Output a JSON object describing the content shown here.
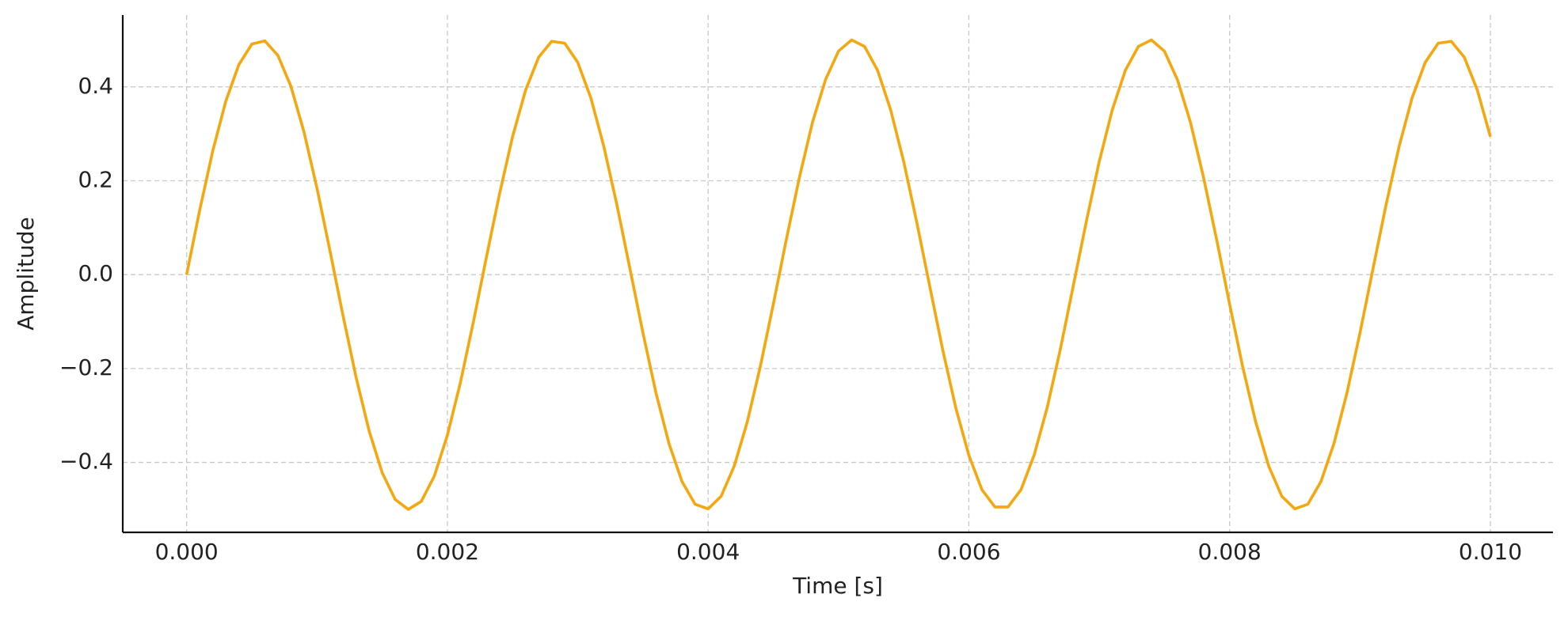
{
  "chart_data": {
    "type": "line",
    "xlabel": "Time [s]",
    "ylabel": "Amplitude",
    "x": [
      0,
      0.0001,
      0.0002,
      0.0003,
      0.0004,
      0.0005,
      0.0006,
      0.0007,
      0.0008,
      0.0009,
      0.001,
      0.0011,
      0.0012,
      0.0013,
      0.0014,
      0.0015,
      0.0016,
      0.0017,
      0.0018,
      0.0019,
      0.002,
      0.0021,
      0.0022,
      0.0023,
      0.0024,
      0.0025,
      0.0026,
      0.0027,
      0.0028,
      0.0029,
      0.003,
      0.0031,
      0.0032,
      0.0033,
      0.0034,
      0.0035,
      0.0036,
      0.0037,
      0.0038,
      0.0039,
      0.004,
      0.0041,
      0.0042,
      0.0043,
      0.0044,
      0.0045,
      0.0046,
      0.0047,
      0.0048,
      0.0049,
      0.005,
      0.0051,
      0.0052,
      0.0053,
      0.0054,
      0.0055,
      0.0056,
      0.0057,
      0.0058,
      0.0059,
      0.006,
      0.0061,
      0.0062,
      0.0063,
      0.0064,
      0.0065,
      0.0066,
      0.0067,
      0.0068,
      0.0069,
      0.007,
      0.0071,
      0.0072,
      0.0073,
      0.0074,
      0.0075,
      0.0076,
      0.0077,
      0.0078,
      0.0079,
      0.008,
      0.0081,
      0.0082,
      0.0083,
      0.0084,
      0.0085,
      0.0086,
      0.0087,
      0.0088,
      0.0089,
      0.009,
      0.0091,
      0.0092,
      0.0093,
      0.0094,
      0.0095,
      0.0096,
      0.0097,
      0.0098,
      0.0099,
      0.01
    ],
    "values": [
      0,
      0.137,
      0.263,
      0.369,
      0.447,
      0.491,
      0.498,
      0.467,
      0.401,
      0.304,
      0.184,
      0.05,
      -0.088,
      -0.219,
      -0.333,
      -0.422,
      -0.479,
      -0.5,
      -0.483,
      -0.429,
      -0.342,
      -0.23,
      -0.1,
      0.038,
      0.172,
      0.294,
      0.393,
      0.463,
      0.497,
      0.493,
      0.452,
      0.377,
      0.273,
      0.149,
      0.013,
      -0.124,
      -0.252,
      -0.36,
      -0.441,
      -0.489,
      -0.499,
      -0.472,
      -0.408,
      -0.314,
      -0.196,
      -0.063,
      0.075,
      0.207,
      0.324,
      0.415,
      0.476,
      0.5,
      0.486,
      0.435,
      0.351,
      0.241,
      0.112,
      -0.025,
      -0.161,
      -0.284,
      -0.385,
      -0.458,
      -0.495,
      -0.495,
      -0.458,
      -0.385,
      -0.284,
      -0.161,
      -0.025,
      0.112,
      0.241,
      0.351,
      0.435,
      0.486,
      0.5,
      0.476,
      0.415,
      0.324,
      0.207,
      0.075,
      -0.063,
      -0.196,
      -0.314,
      -0.408,
      -0.472,
      -0.499,
      -0.489,
      -0.441,
      -0.36,
      -0.252,
      -0.124,
      0.013,
      0.149,
      0.273,
      0.377,
      0.452,
      0.493,
      0.497,
      0.463,
      0.393,
      0.294
    ],
    "color": "#f5a70f",
    "xlim": [
      -0.00049,
      0.01048
    ],
    "xticks": [
      {
        "value": 0,
        "label": "0.000"
      },
      {
        "value": 0.002,
        "label": "0.002"
      },
      {
        "value": 0.004,
        "label": "0.004"
      },
      {
        "value": 0.006,
        "label": "0.006"
      },
      {
        "value": 0.008,
        "label": "0.008"
      },
      {
        "value": 0.01,
        "label": "0.010"
      }
    ],
    "ylim": [
      -0.549,
      0.553
    ],
    "yticks": [
      {
        "value": -0.4,
        "label": "−0.4"
      },
      {
        "value": -0.2,
        "label": "−0.2"
      },
      {
        "value": 0,
        "label": "0.0"
      },
      0.2,
      0.4
    ],
    "grid": true
  }
}
